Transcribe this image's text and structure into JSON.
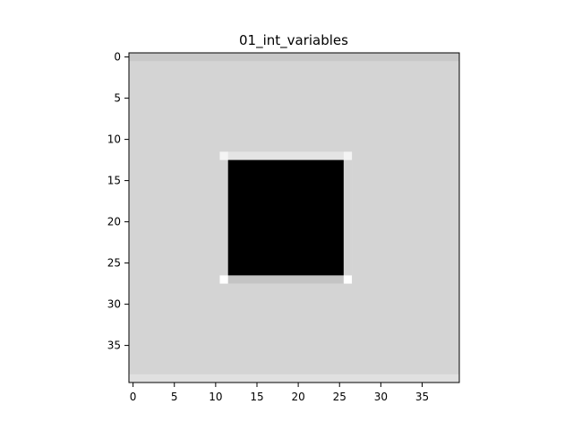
{
  "chart_data": {
    "type": "heatmap",
    "title": "01_int_variables",
    "xlabel": "",
    "ylabel": "",
    "xlim": [
      -0.5,
      39.5
    ],
    "ylim": [
      39.5,
      -0.5
    ],
    "y_axis_inverted": true,
    "x_ticks": [
      0,
      5,
      10,
      15,
      20,
      25,
      30,
      35
    ],
    "y_ticks": [
      0,
      5,
      10,
      15,
      20,
      25,
      30,
      35
    ],
    "grid": false,
    "colormap": "gray",
    "image_size": [
      40,
      40
    ],
    "colors": {
      "background": "#d4d4d4",
      "edge_row_light": "#dcdcdc",
      "inner_block": "#000000",
      "border": "#e0e0e0",
      "corner": "#ffffff",
      "shadow_row": "#c4c4c4"
    },
    "regions": [
      {
        "name": "background",
        "rows": [
          0,
          39
        ],
        "cols": [
          0,
          39
        ],
        "color": "#d4d4d4"
      },
      {
        "name": "top-edge-row",
        "rows": [
          0,
          0
        ],
        "cols": [
          0,
          39
        ],
        "color": "#c8c8c8"
      },
      {
        "name": "bottom-edge-row",
        "rows": [
          39,
          39
        ],
        "cols": [
          0,
          39
        ],
        "color": "#e0e0e0"
      },
      {
        "name": "box-frame",
        "rows": [
          12,
          27
        ],
        "cols": [
          11,
          26
        ],
        "color": "#e4e4e4"
      },
      {
        "name": "box-bottom-shadow",
        "rows": [
          27,
          27
        ],
        "cols": [
          11,
          26
        ],
        "color": "#c4c4c4"
      },
      {
        "name": "box-left-frame",
        "rows": [
          13,
          26
        ],
        "cols": [
          11,
          11
        ],
        "color": "#d4d4d4"
      },
      {
        "name": "box-right-frame",
        "rows": [
          13,
          26
        ],
        "cols": [
          26,
          26
        ],
        "color": "#d4d4d4"
      },
      {
        "name": "box-interior",
        "rows": [
          13,
          26
        ],
        "cols": [
          12,
          25
        ],
        "color": "#000000"
      },
      {
        "name": "corner-top-left",
        "rows": [
          12,
          12
        ],
        "cols": [
          11,
          11
        ],
        "color": "#f4f4f4"
      },
      {
        "name": "corner-top-right",
        "rows": [
          12,
          12
        ],
        "cols": [
          26,
          26
        ],
        "color": "#f4f4f4"
      },
      {
        "name": "corner-bottom-left",
        "rows": [
          27,
          27
        ],
        "cols": [
          11,
          11
        ],
        "color": "#ffffff"
      },
      {
        "name": "corner-bottom-right",
        "rows": [
          27,
          27
        ],
        "cols": [
          26,
          26
        ],
        "color": "#ffffff"
      }
    ]
  }
}
